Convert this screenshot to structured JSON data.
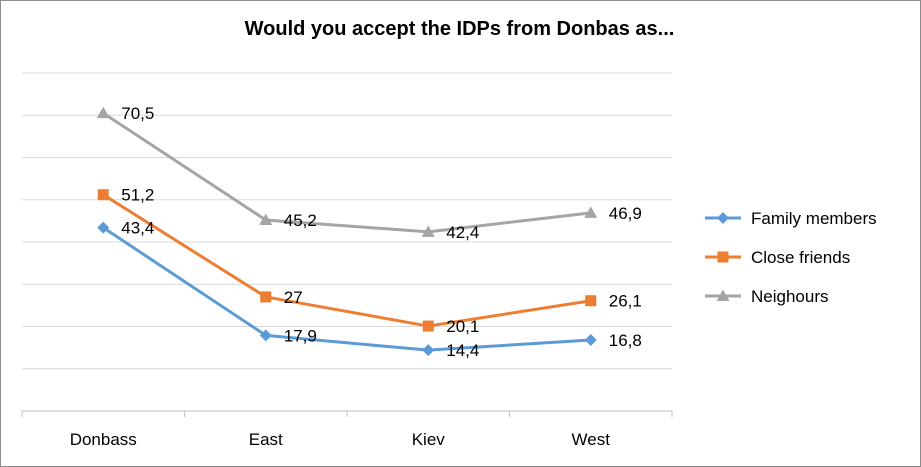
{
  "chart_data": {
    "type": "line",
    "title": "Would you accept the IDPs from Donbas as...",
    "categories": [
      "Donbass",
      "East",
      "Kiev",
      "West"
    ],
    "ylim": [
      0,
      80
    ],
    "grid": true,
    "legend_position": "right",
    "series": [
      {
        "name": "Family members",
        "color": "#5b9bd5",
        "marker": "diamond",
        "values": [
          43.4,
          17.9,
          14.4,
          16.8
        ],
        "labels": [
          "43,4",
          "17,9",
          "14,4",
          "16,8"
        ]
      },
      {
        "name": "Close friends",
        "color": "#ed7d31",
        "marker": "square",
        "values": [
          51.2,
          27,
          20.1,
          26.1
        ],
        "labels": [
          "51,2",
          "27",
          "20,1",
          "26,1"
        ]
      },
      {
        "name": "Neighours",
        "color": "#a5a5a5",
        "marker": "triangle",
        "values": [
          70.5,
          45.2,
          42.4,
          46.9
        ],
        "labels": [
          "70,5",
          "45,2",
          "42,4",
          "46,9"
        ]
      }
    ]
  }
}
